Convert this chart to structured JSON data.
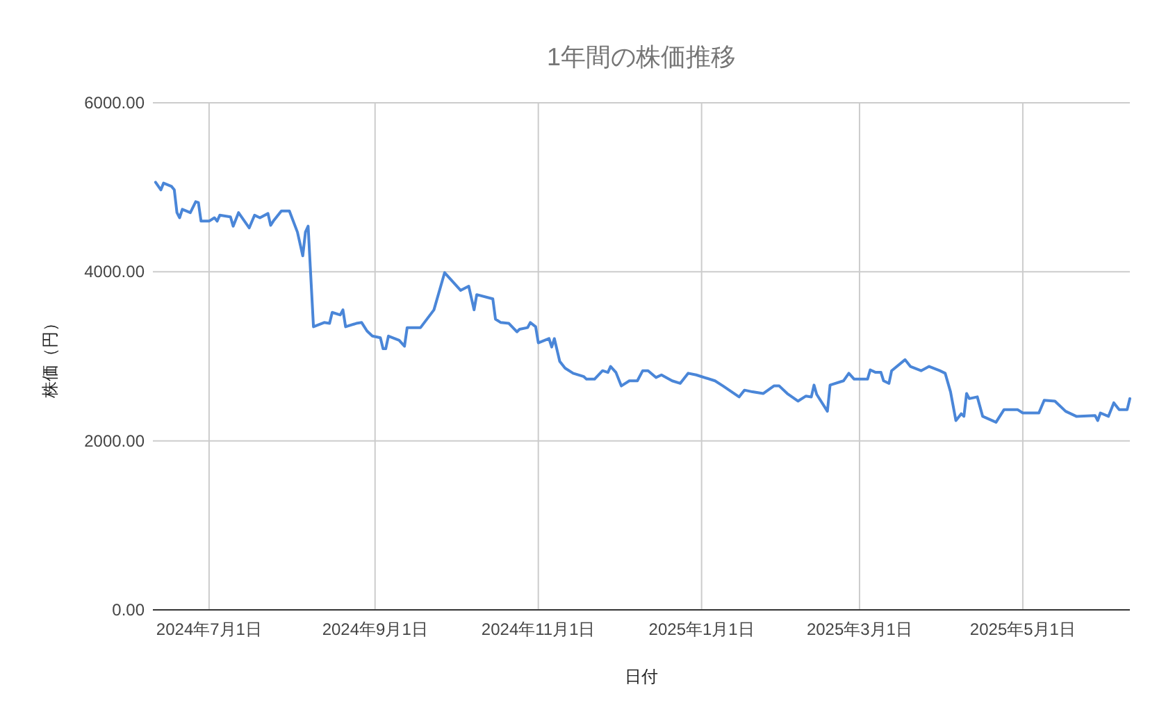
{
  "chart_data": {
    "type": "line",
    "title": "1年間の株価推移",
    "xlabel": "日付",
    "ylabel": "株価（円）",
    "x": [
      "2024-06-11",
      "2024-06-13",
      "2024-06-14",
      "2024-06-17",
      "2024-06-18",
      "2024-06-19",
      "2024-06-20",
      "2024-06-21",
      "2024-06-24",
      "2024-06-26",
      "2024-06-27",
      "2024-06-28",
      "2024-07-01",
      "2024-07-03",
      "2024-07-04",
      "2024-07-05",
      "2024-07-09",
      "2024-07-10",
      "2024-07-12",
      "2024-07-16",
      "2024-07-18",
      "2024-07-20",
      "2024-07-23",
      "2024-07-24",
      "2024-07-25",
      "2024-07-28",
      "2024-07-31",
      "2024-08-03",
      "2024-08-05",
      "2024-08-06",
      "2024-08-07",
      "2024-08-09",
      "2024-08-13",
      "2024-08-15",
      "2024-08-16",
      "2024-08-19",
      "2024-08-20",
      "2024-08-21",
      "2024-08-25",
      "2024-08-27",
      "2024-08-29",
      "2024-08-31",
      "2024-09-03",
      "2024-09-04",
      "2024-09-05",
      "2024-09-06",
      "2024-09-10",
      "2024-09-12",
      "2024-09-13",
      "2024-09-18",
      "2024-09-23",
      "2024-09-27",
      "2024-10-03",
      "2024-10-06",
      "2024-10-08",
      "2024-10-09",
      "2024-10-15",
      "2024-10-16",
      "2024-10-18",
      "2024-10-21",
      "2024-10-24",
      "2024-10-25",
      "2024-10-28",
      "2024-10-29",
      "2024-10-31",
      "2024-11-01",
      "2024-11-05",
      "2024-11-06",
      "2024-11-07",
      "2024-11-09",
      "2024-11-11",
      "2024-11-14",
      "2024-11-18",
      "2024-11-19",
      "2024-11-22",
      "2024-11-25",
      "2024-11-27",
      "2024-11-28",
      "2024-11-30",
      "2024-12-02",
      "2024-12-05",
      "2024-12-08",
      "2024-12-10",
      "2024-12-12",
      "2024-12-15",
      "2024-12-17",
      "2024-12-21",
      "2024-12-24",
      "2024-12-27",
      "2024-12-30",
      "2025-01-06",
      "2025-01-09",
      "2025-01-15",
      "2025-01-17",
      "2025-01-20",
      "2025-01-24",
      "2025-01-28",
      "2025-01-30",
      "2025-02-02",
      "2025-02-06",
      "2025-02-09",
      "2025-02-11",
      "2025-02-12",
      "2025-02-13",
      "2025-02-17",
      "2025-02-18",
      "2025-02-23",
      "2025-02-25",
      "2025-02-27",
      "2025-03-04",
      "2025-03-05",
      "2025-03-07",
      "2025-03-09",
      "2025-03-10",
      "2025-03-12",
      "2025-03-13",
      "2025-03-18",
      "2025-03-20",
      "2025-03-24",
      "2025-03-27",
      "2025-03-31",
      "2025-04-02",
      "2025-04-04",
      "2025-04-06",
      "2025-04-08",
      "2025-04-09",
      "2025-04-10",
      "2025-04-11",
      "2025-04-14",
      "2025-04-16",
      "2025-04-21",
      "2025-04-24",
      "2025-04-29",
      "2025-05-01",
      "2025-05-07",
      "2025-05-09",
      "2025-05-13",
      "2025-05-17",
      "2025-05-21",
      "2025-05-28",
      "2025-05-29",
      "2025-05-30",
      "2025-06-02",
      "2025-06-04",
      "2025-06-06",
      "2025-06-09",
      "2025-06-10"
    ],
    "series": [
      {
        "color": "#4a86d8",
        "values": [
          5060,
          4970,
          5050,
          5010,
          4970,
          4700,
          4640,
          4740,
          4700,
          4830,
          4820,
          4600,
          4600,
          4640,
          4600,
          4670,
          4650,
          4540,
          4700,
          4520,
          4670,
          4640,
          4690,
          4550,
          4600,
          4720,
          4720,
          4470,
          4190,
          4470,
          4540,
          3350,
          3400,
          3390,
          3520,
          3490,
          3550,
          3350,
          3390,
          3400,
          3300,
          3240,
          3220,
          3090,
          3090,
          3240,
          3190,
          3120,
          3340,
          3340,
          3550,
          3990,
          3780,
          3830,
          3550,
          3730,
          3680,
          3440,
          3400,
          3390,
          3290,
          3320,
          3340,
          3400,
          3350,
          3160,
          3210,
          3110,
          3210,
          2940,
          2860,
          2800,
          2760,
          2730,
          2730,
          2830,
          2810,
          2880,
          2810,
          2650,
          2710,
          2710,
          2830,
          2830,
          2750,
          2780,
          2710,
          2680,
          2800,
          2780,
          2710,
          2650,
          2520,
          2600,
          2580,
          2560,
          2650,
          2650,
          2560,
          2470,
          2530,
          2520,
          2660,
          2550,
          2350,
          2660,
          2710,
          2800,
          2730,
          2730,
          2840,
          2810,
          2810,
          2710,
          2680,
          2830,
          2960,
          2880,
          2830,
          2880,
          2830,
          2800,
          2580,
          2240,
          2320,
          2290,
          2560,
          2500,
          2520,
          2290,
          2220,
          2370,
          2370,
          2330,
          2330,
          2480,
          2470,
          2350,
          2290,
          2300,
          2240,
          2330,
          2290,
          2450,
          2370,
          2370,
          2500
        ]
      }
    ],
    "xlim": [
      "2024-06-10",
      "2025-06-10"
    ],
    "xticks": [
      {
        "value": "2024-07-01",
        "label": "2024年7月1日"
      },
      {
        "value": "2024-09-01",
        "label": "2024年9月1日"
      },
      {
        "value": "2024-11-01",
        "label": "2024年11月1日"
      },
      {
        "value": "2025-01-01",
        "label": "2025年1月1日"
      },
      {
        "value": "2025-03-01",
        "label": "2025年3月1日"
      },
      {
        "value": "2025-05-01",
        "label": "2025年5月1日"
      }
    ],
    "ylim": [
      0,
      6000
    ],
    "yticks": [
      {
        "value": 0,
        "label": "0.00"
      },
      {
        "value": 2000,
        "label": "2000.00"
      },
      {
        "value": 4000,
        "label": "4000.00"
      },
      {
        "value": 6000,
        "label": "6000.00"
      }
    ],
    "grid": true,
    "marker": "none",
    "line_style": "solid"
  }
}
